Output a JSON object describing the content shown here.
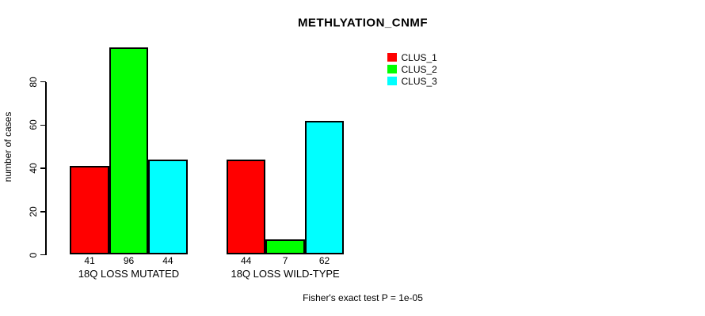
{
  "chart_data": {
    "type": "bar",
    "title": "METHLYATION_CNMF",
    "ylabel": "number of cases",
    "xlabel": "",
    "categories": [
      "18Q LOSS MUTATED",
      "18Q LOSS WILD-TYPE"
    ],
    "series": [
      {
        "name": "CLUS_1",
        "color": "#FF0000",
        "values": [
          41,
          44
        ]
      },
      {
        "name": "CLUS_2",
        "color": "#00FF00",
        "values": [
          96,
          7
        ]
      },
      {
        "name": "CLUS_3",
        "color": "#00FFFF",
        "values": [
          44,
          62
        ]
      }
    ],
    "yticks": [
      0,
      20,
      40,
      60,
      80
    ],
    "ylim": [
      0,
      100
    ],
    "bar_value_labels": [
      [
        41,
        96,
        44
      ],
      [
        44,
        7,
        62
      ]
    ],
    "legend_position": "top-right",
    "grid": false,
    "bar_border_color": "#000000"
  },
  "footer": {
    "note": "Fisher's exact test P = 1e-05"
  }
}
